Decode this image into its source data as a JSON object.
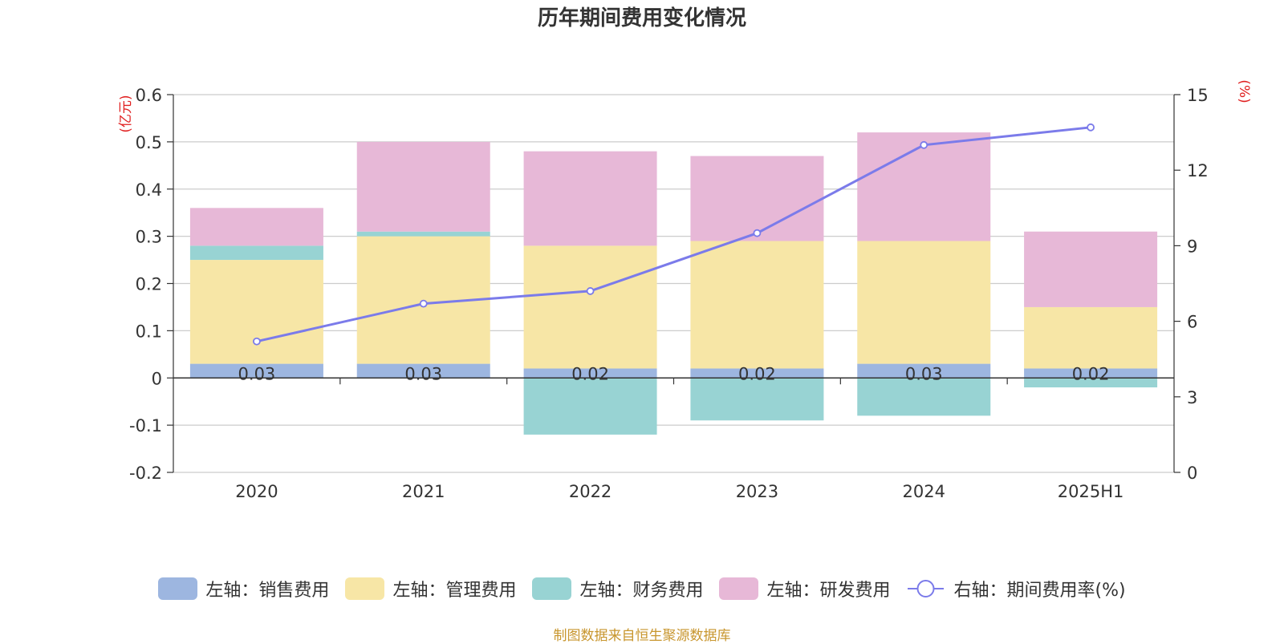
{
  "title": "历年期间费用变化情况",
  "source": "制图数据来自恒生聚源数据库",
  "chart_data": {
    "type": "bar",
    "stacked": true,
    "title": "历年期间费用变化情况",
    "categories": [
      "2020",
      "2021",
      "2022",
      "2023",
      "2024",
      "2025H1"
    ],
    "left_axis": {
      "unit": "(亿元)",
      "ylim": [
        -0.2,
        0.6
      ],
      "ticks": [
        "0.6",
        "0.5",
        "0.4",
        "0.3",
        "0.2",
        "0.1",
        "0",
        "-0.1",
        "-0.2"
      ]
    },
    "right_axis": {
      "unit": "(%)",
      "ylim": [
        0,
        15
      ],
      "ticks": [
        "15",
        "12",
        "9",
        "6",
        "3",
        "0"
      ]
    },
    "series": [
      {
        "name": "左轴：销售费用",
        "type": "bar",
        "axis": "left",
        "color": "#9db6e0",
        "values": [
          0.03,
          0.03,
          0.02,
          0.02,
          0.03,
          0.02
        ],
        "labels": [
          "0.03",
          "0.03",
          "0.02",
          "0.02",
          "0.03",
          "0.02"
        ]
      },
      {
        "name": "左轴：管理费用",
        "type": "bar",
        "axis": "left",
        "color": "#f7e6a6",
        "values": [
          0.22,
          0.27,
          0.26,
          0.27,
          0.26,
          0.13
        ]
      },
      {
        "name": "左轴：财务费用",
        "type": "bar",
        "axis": "left",
        "color": "#98d3d3",
        "values": [
          0.03,
          0.01,
          -0.12,
          -0.09,
          -0.08,
          -0.02
        ]
      },
      {
        "name": "左轴：研发费用",
        "type": "bar",
        "axis": "left",
        "color": "#e7b8d7",
        "values": [
          0.08,
          0.19,
          0.2,
          0.18,
          0.23,
          0.16
        ]
      },
      {
        "name": "右轴：期间费用率(%)",
        "type": "line",
        "axis": "right",
        "color": "#7b7bea",
        "values": [
          5.2,
          6.7,
          7.2,
          9.5,
          13.0,
          13.7
        ]
      }
    ],
    "grid": true
  }
}
